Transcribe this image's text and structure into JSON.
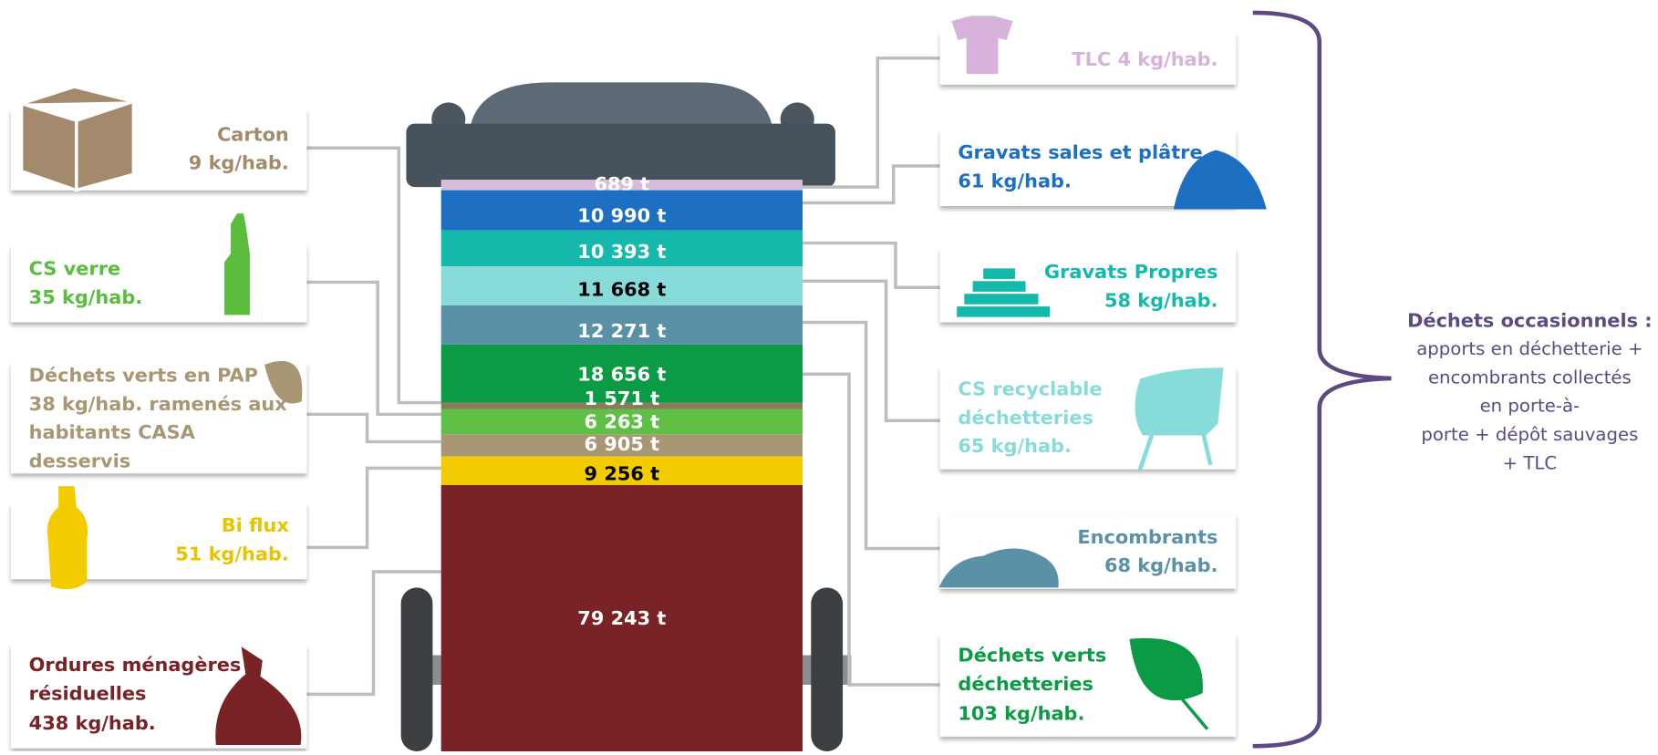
{
  "bin_layers": [
    {
      "label": "689 t",
      "color": "#d7bddb",
      "text_color": "#ffffff"
    },
    {
      "label": "10 990 t",
      "color": "#1c6fc1",
      "text_color": "#ffffff"
    },
    {
      "label": "10 393 t",
      "color": "#14b9ab",
      "text_color": "#ffffff"
    },
    {
      "label": "11 668 t",
      "color": "#87dcd9",
      "text_color": "#000000"
    },
    {
      "label": "12 271 t",
      "color": "#5a91a7",
      "text_color": "#ffffff"
    },
    {
      "label": "18 656 t",
      "color": "#0b9b45",
      "text_color": "#ffffff"
    },
    {
      "label": "1 571 t",
      "color": "#8a7b5c",
      "text_color": "#ffffff"
    },
    {
      "label": "6 263 t",
      "color": "#60c046",
      "text_color": "#ffffff"
    },
    {
      "label": "6 905 t",
      "color": "#a99672",
      "text_color": "#ffffff"
    },
    {
      "label": "9 256 t",
      "color": "#f2cc00",
      "text_color": "#000000"
    },
    {
      "label": "79 243 t",
      "color": "#7a2327",
      "text_color": "#ffffff"
    }
  ],
  "left_boxes": [
    {
      "lines": [
        "Carton",
        "9 kg/hab."
      ],
      "color": "#a48a6c"
    },
    {
      "lines": [
        "CS verre",
        "35 kg/hab."
      ],
      "color": "#5bbd3c"
    },
    {
      "lines": [
        "Déchets verts en PAP",
        "38 kg/hab. ramenés aux",
        "habitants CASA",
        "desservis"
      ],
      "color": "#a99672"
    },
    {
      "lines": [
        "Bi flux",
        "51 kg/hab."
      ],
      "color": "#e8c300"
    },
    {
      "lines": [
        "Ordures ménagères",
        "résiduelles",
        "438 kg/hab."
      ],
      "color": "#7a2327"
    }
  ],
  "right_boxes": [
    {
      "lines": [
        "TLC 4 kg/hab."
      ],
      "color": "#d7b2da"
    },
    {
      "lines": [
        "Gravats sales et plâtre",
        "61 kg/hab."
      ],
      "color": "#1c6fc1"
    },
    {
      "lines": [
        "Gravats Propres",
        "58 kg/hab."
      ],
      "color": "#14b9ab"
    },
    {
      "lines": [
        "CS recyclable",
        "déchetteries",
        "65 kg/hab."
      ],
      "color": "#87dcd9"
    },
    {
      "lines": [
        "Encombrants",
        "68 kg/hab."
      ],
      "color": "#5a91a7"
    },
    {
      "lines": [
        "Déchets verts",
        "déchetteries",
        "103 kg/hab."
      ],
      "color": "#0b9b45"
    }
  ],
  "bracket": {
    "title": "Déchets occasionnels :",
    "lines": [
      "apports en déchetterie +",
      "encombrants collectés",
      "en porte-à-",
      "porte + dépôt sauvages",
      "+ TLC"
    ],
    "color": "#5e4a82"
  }
}
